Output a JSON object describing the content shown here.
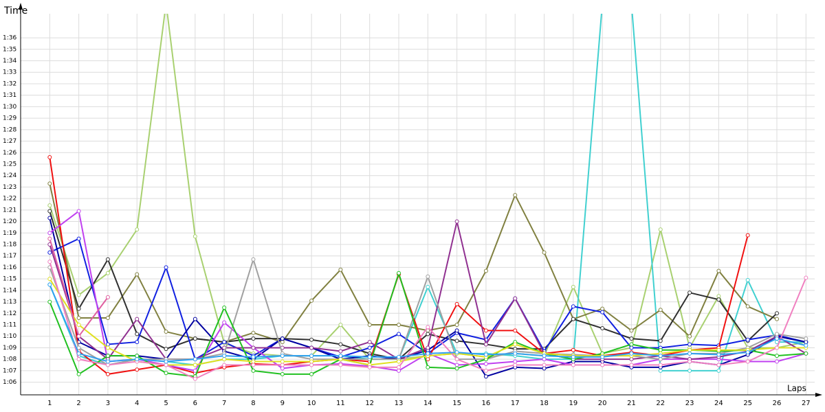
{
  "chart_data": {
    "type": "line",
    "y_label": "Time",
    "x_label": "Laps",
    "x": [
      1,
      2,
      3,
      4,
      5,
      6,
      7,
      8,
      9,
      10,
      11,
      12,
      13,
      14,
      15,
      16,
      17,
      18,
      19,
      20,
      21,
      22,
      23,
      24,
      25,
      26,
      27
    ],
    "xlim": [
      0,
      27.3
    ],
    "xticks": [
      1,
      2,
      3,
      4,
      5,
      6,
      7,
      8,
      9,
      10,
      11,
      12,
      13,
      14,
      15,
      16,
      17,
      18,
      19,
      20,
      21,
      22,
      23,
      24,
      25,
      26,
      27
    ],
    "ylim": [
      64.9,
      97.5
    ],
    "yticks": [
      {
        "value": 66,
        "label": "1:06"
      },
      {
        "value": 67,
        "label": "1:07"
      },
      {
        "value": 68,
        "label": "1:08"
      },
      {
        "value": 69,
        "label": "1:09"
      },
      {
        "value": 70,
        "label": "1:10"
      },
      {
        "value": 71,
        "label": "1:11"
      },
      {
        "value": 72,
        "label": "1:12"
      },
      {
        "value": 73,
        "label": "1:13"
      },
      {
        "value": 74,
        "label": "1:14"
      },
      {
        "value": 75,
        "label": "1:15"
      },
      {
        "value": 76,
        "label": "1:16"
      },
      {
        "value": 77,
        "label": "1:17"
      },
      {
        "value": 78,
        "label": "1:18"
      },
      {
        "value": 79,
        "label": "1:19"
      },
      {
        "value": 80,
        "label": "1:20"
      },
      {
        "value": 81,
        "label": "1:21"
      },
      {
        "value": 82,
        "label": "1:22"
      },
      {
        "value": 83,
        "label": "1:23"
      },
      {
        "value": 84,
        "label": "1:24"
      },
      {
        "value": 85,
        "label": "1:25"
      },
      {
        "value": 86,
        "label": "1:26"
      },
      {
        "value": 87,
        "label": "1:27"
      },
      {
        "value": 88,
        "label": "1:28"
      },
      {
        "value": 89,
        "label": "1:29"
      },
      {
        "value": 90,
        "label": "1:30"
      },
      {
        "value": 91,
        "label": "1:31"
      },
      {
        "value": 92,
        "label": "1:32"
      },
      {
        "value": 93,
        "label": "1:33"
      },
      {
        "value": 94,
        "label": "1:34"
      },
      {
        "value": 95,
        "label": "1:35"
      },
      {
        "value": 96,
        "label": "1:36"
      }
    ],
    "grid": true,
    "series": [
      {
        "color": "#a8d070",
        "values": [
          81.4,
          73.6,
          75.5,
          79.3,
          99,
          78.7,
          69.4,
          68.5,
          68.3,
          68.3,
          71,
          68,
          68,
          68.3,
          68.5,
          68.2,
          68.5,
          68.3,
          74.3,
          68.5,
          69,
          79.3,
          69,
          73.5,
          69,
          69,
          69.5
        ]
      },
      {
        "color": "#40d0d0",
        "values": [
          74.5,
          68.3,
          67.5,
          68,
          67.8,
          67.5,
          68,
          68,
          68.3,
          68.3,
          68.3,
          68,
          68,
          74.3,
          68.5,
          68.5,
          68.3,
          68,
          68,
          99,
          99,
          67,
          67,
          67,
          74.9,
          69.5,
          69.5
        ]
      },
      {
        "color": "#808040",
        "values": [
          83.3,
          71.6,
          71.6,
          75.4,
          70.4,
          69.8,
          69.5,
          70.3,
          69.5,
          73.1,
          75.8,
          71,
          71,
          70.5,
          71,
          75.7,
          82.3,
          77.3,
          71.5,
          72.4,
          70.5,
          72.3,
          70,
          75.7,
          72.6,
          71.5,
          null
        ]
      },
      {
        "color": "#303030",
        "values": [
          80.9,
          72.4,
          76.7,
          70.2,
          68.9,
          69.8,
          69.5,
          69.8,
          69.8,
          69.7,
          69.3,
          68.5,
          68,
          70.2,
          69.6,
          69.3,
          68.9,
          68.9,
          71.5,
          70.7,
          69.8,
          69.6,
          73.8,
          73.2,
          69.6,
          72,
          null
        ]
      },
      {
        "color": "#1020e0",
        "values": [
          77.3,
          78.5,
          69.3,
          69.5,
          76,
          68,
          69.5,
          68.3,
          69.8,
          69,
          68.2,
          69,
          70.2,
          68.5,
          70.3,
          69.7,
          73.3,
          68.7,
          72.6,
          72.1,
          69,
          69,
          69.3,
          69.2,
          69.7,
          70.1,
          69.5
        ]
      },
      {
        "color": "#0000a0",
        "values": [
          80.3,
          69.5,
          68.3,
          68.3,
          68,
          71.5,
          68.7,
          68,
          69.8,
          69,
          68,
          68.3,
          68,
          68.8,
          70.5,
          66.5,
          67.3,
          67.2,
          67.8,
          67.8,
          67.3,
          67.3,
          67.8,
          67.5,
          68.4,
          70,
          69.5
        ]
      },
      {
        "color": "#f01010",
        "values": [
          85.6,
          68.7,
          66.7,
          67.1,
          67.5,
          66.8,
          67.3,
          67.6,
          67.5,
          67.8,
          68,
          67.8,
          75.4,
          68,
          72.8,
          70.5,
          70.5,
          68.5,
          68.8,
          68.3,
          68.6,
          68.3,
          68.8,
          69,
          78.8,
          null,
          null
        ]
      },
      {
        "color": "#c040f0",
        "values": [
          79,
          80.9,
          67.8,
          68,
          67.5,
          67,
          71.2,
          69,
          67.2,
          67.5,
          67.6,
          67.4,
          67,
          68.5,
          67.5,
          67.6,
          67.8,
          68,
          67.5,
          67.5,
          67.5,
          68,
          68,
          68,
          67.8,
          67.8,
          68.5
        ]
      },
      {
        "color": "#903090",
        "values": [
          78,
          70,
          68,
          71.5,
          68,
          68,
          69,
          69,
          69,
          69,
          68.7,
          69.5,
          68,
          69,
          80,
          69.3,
          73.3,
          68.5,
          68,
          68,
          68,
          68.3,
          68,
          68.2,
          68.7,
          70,
          68.5
        ]
      },
      {
        "color": "#a0a0a0",
        "values": [
          76,
          69,
          67.5,
          68,
          68,
          68,
          68.5,
          76.7,
          68.5,
          68,
          68,
          68,
          68,
          75.2,
          68,
          68,
          68.7,
          68.5,
          68.4,
          68.3,
          68.3,
          68,
          68.5,
          68.5,
          69,
          70.2,
          69.8
        ]
      },
      {
        "color": "#20c020",
        "values": [
          73,
          66.7,
          68.3,
          68.3,
          66.8,
          66.5,
          72.5,
          67,
          66.7,
          66.7,
          68,
          67.5,
          75.5,
          67.3,
          67.2,
          68,
          69.5,
          68.5,
          68,
          68.5,
          69.3,
          68.8,
          68.8,
          68.7,
          68.8,
          68.3,
          68.5
        ]
      },
      {
        "color": "#e0e020",
        "values": [
          75,
          71,
          69,
          67.8,
          67.5,
          67.5,
          68,
          67.8,
          67.8,
          67.8,
          68,
          67.5,
          67.8,
          68.3,
          68.5,
          68.2,
          69.3,
          68.5,
          68.3,
          68.3,
          68.3,
          68.5,
          68.8,
          68.8,
          68.8,
          69,
          69
        ]
      },
      {
        "color": "#f080c0",
        "values": [
          76.5,
          68,
          67.5,
          67.8,
          67.5,
          66.3,
          67.5,
          67.5,
          67.5,
          67.5,
          67.5,
          67.3,
          67.3,
          70.8,
          68,
          67,
          67.5,
          67.5,
          67.5,
          67.5,
          67.5,
          67.5,
          67.8,
          67.5,
          67.8,
          69,
          75.1
        ]
      },
      {
        "color": "#e060a0",
        "values": [
          78.5,
          70,
          73.4,
          null,
          null,
          null,
          null,
          null,
          null,
          null,
          null,
          null,
          null,
          null,
          null,
          null,
          null,
          null,
          null,
          null,
          null,
          null,
          null,
          null,
          null,
          null,
          null
        ]
      },
      {
        "color": "#30a0f0",
        "values": [
          74.5,
          68.5,
          67.8,
          68,
          67.8,
          68,
          68.3,
          68.2,
          68.3,
          68.3,
          68.3,
          68.2,
          68.2,
          68.5,
          68.6,
          68.4,
          68.5,
          68.3,
          68.2,
          68.2,
          68.5,
          68.3,
          68.5,
          68.4,
          68.6,
          69.8,
          69.2
        ]
      }
    ]
  }
}
